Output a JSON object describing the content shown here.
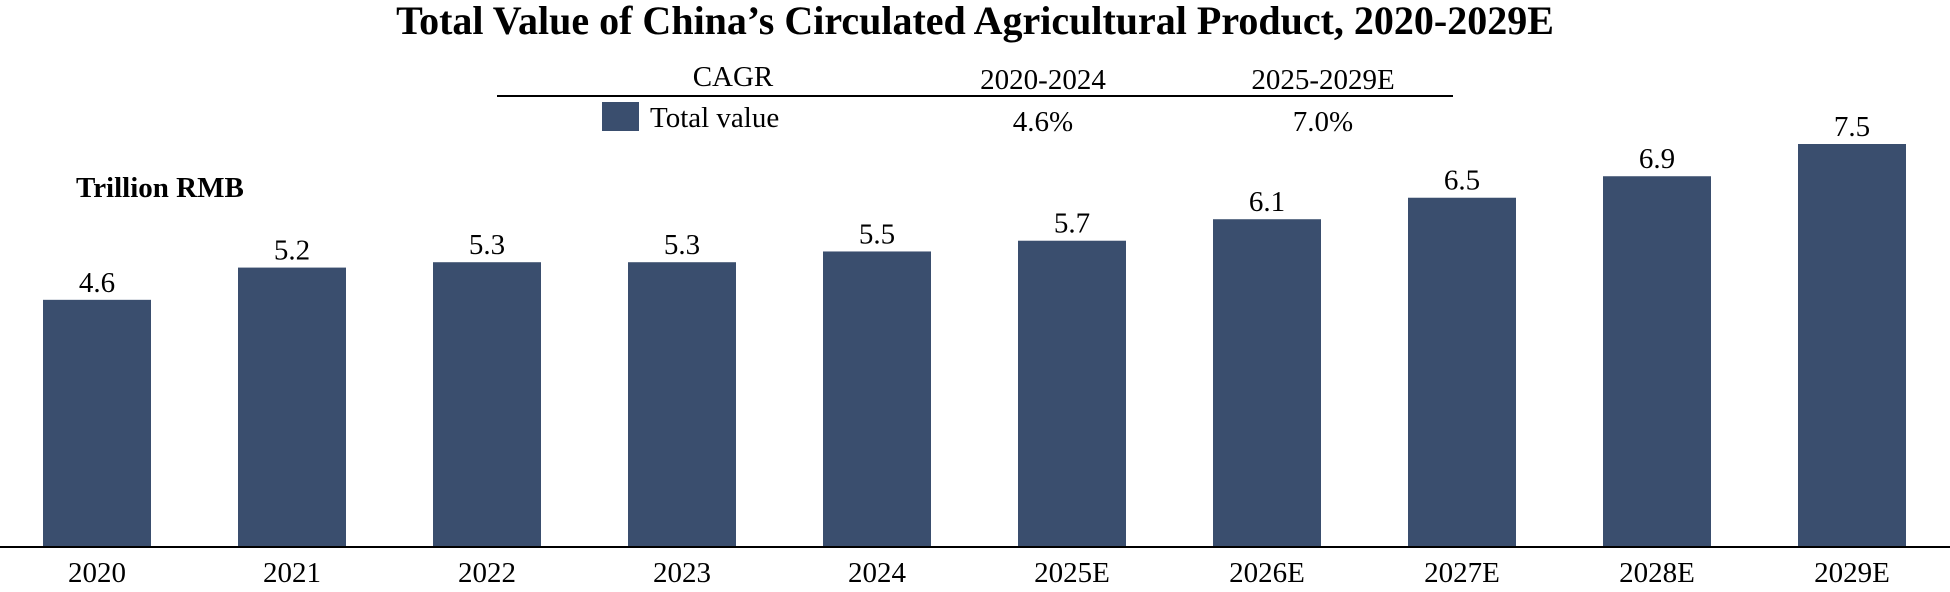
{
  "chart_data": {
    "type": "bar",
    "title": "Total Value of China’s Circulated Agricultural Product, 2020-2029E",
    "ylabel": "Trillion RMB",
    "xlabel": "",
    "categories": [
      "2020",
      "2021",
      "2022",
      "2023",
      "2024",
      "2025E",
      "2026E",
      "2027E",
      "2028E",
      "2029E"
    ],
    "series": [
      {
        "name": "Total value",
        "values": [
          4.6,
          5.2,
          5.3,
          5.3,
          5.5,
          5.7,
          6.1,
          6.5,
          6.9,
          7.5
        ]
      }
    ],
    "data_labels": [
      "4.6",
      "5.2",
      "5.3",
      "5.3",
      "5.5",
      "5.7",
      "6.1",
      "6.5",
      "6.9",
      "7.5"
    ],
    "ylim": [
      0,
      7.5
    ],
    "grid": false,
    "bar_color": "#3a4e6e",
    "cagr_table": {
      "header_label": "CAGR",
      "period_1": "2020-2024",
      "period_2": "2025-2029E",
      "row_label": "Total value",
      "value_1": "4.6%",
      "value_2": "7.0%"
    }
  }
}
